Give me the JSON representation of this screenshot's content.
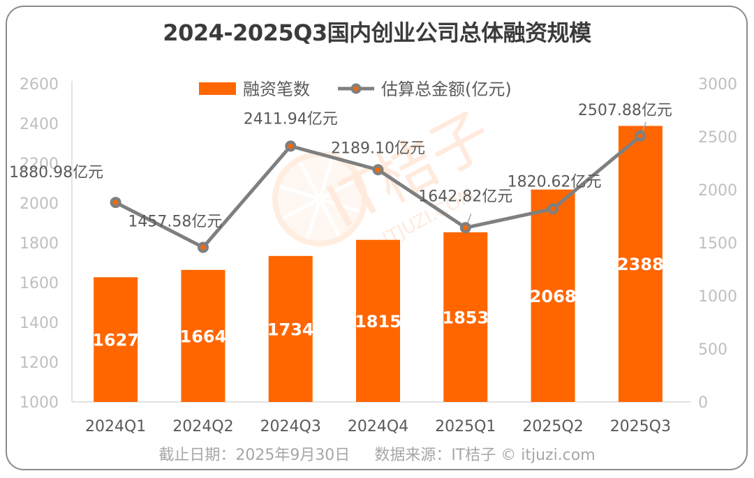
{
  "chart_data": {
    "type": "bar+line",
    "title": "2024-2025Q3国内创业公司总体融资规模",
    "categories": [
      "2024Q1",
      "2024Q2",
      "2024Q3",
      "2024Q4",
      "2025Q1",
      "2025Q2",
      "2025Q3"
    ],
    "series": [
      {
        "name": "融资笔数",
        "type": "bar",
        "axis": "left",
        "color": "#ff6600",
        "values": [
          1627,
          1664,
          1734,
          1815,
          1853,
          2068,
          2388
        ],
        "labels": [
          "1627",
          "1664",
          "1734",
          "1815",
          "1853",
          "2068",
          "2388"
        ]
      },
      {
        "name": "估算总金额(亿元)",
        "type": "line",
        "axis": "right",
        "color": "#7f7f7f",
        "marker_color": "#ff6600",
        "values": [
          1880.98,
          1457.58,
          2411.94,
          2189.1,
          1642.82,
          1820.62,
          2507.88
        ],
        "labels": [
          "1880.98亿元",
          "1457.58亿元",
          "2411.94亿元",
          "2189.10亿元",
          "1642.82亿元",
          "1820.62亿元",
          "2507.88亿元"
        ]
      }
    ],
    "left_axis": {
      "min": 1000,
      "max": 2600,
      "ticks": [
        "1000",
        "1200",
        "1400",
        "1600",
        "1800",
        "2000",
        "2200",
        "2400",
        "2600"
      ]
    },
    "right_axis": {
      "min": 0,
      "max": 3000,
      "ticks": [
        "0",
        "500",
        "1000",
        "1500",
        "2000",
        "2500",
        "3000"
      ]
    },
    "xlabel": "",
    "ylabel": "",
    "grid": false,
    "legend_position": "top"
  },
  "watermark": {
    "brand": "IT桔子",
    "site": "ITJUZI.COM"
  },
  "footer": {
    "date_note": "截止日期：2025年9月30日",
    "source_note": "数据来源：IT桔子 © itjuzi.com"
  }
}
